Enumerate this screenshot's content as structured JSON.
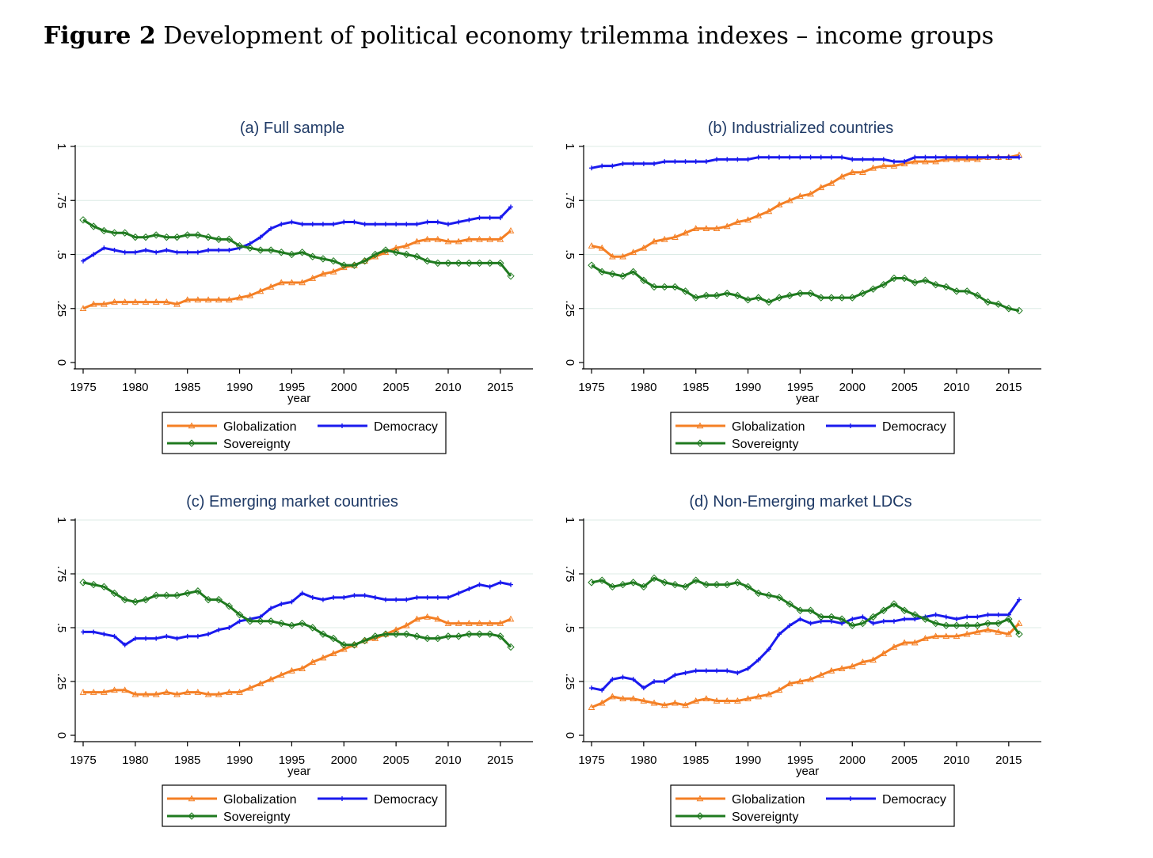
{
  "figure": {
    "label": "Figure 2",
    "caption": "Development of political economy trilemma indexes – income groups"
  },
  "colors": {
    "globalization": "#f47f24",
    "democracy": "#1a1aee",
    "sovereignty": "#1f7a1f",
    "gridline": "#dcebe6"
  },
  "chart_data": [
    {
      "type": "line",
      "title": "(a) Full sample",
      "xlabel": "year",
      "ylabel": "",
      "xlim": [
        1975,
        2016
      ],
      "ylim": [
        0,
        1
      ],
      "xticks": [
        "1975",
        "1980",
        "1985",
        "1990",
        "1995",
        "2000",
        "2005",
        "2010",
        "2015"
      ],
      "yticks": [
        "0",
        ".25",
        ".5",
        ".75",
        "1"
      ],
      "grid": true,
      "legend": "bottom",
      "x": [
        1975,
        1976,
        1977,
        1978,
        1979,
        1980,
        1981,
        1982,
        1983,
        1984,
        1985,
        1986,
        1987,
        1988,
        1989,
        1990,
        1991,
        1992,
        1993,
        1994,
        1995,
        1996,
        1997,
        1998,
        1999,
        2000,
        2001,
        2002,
        2003,
        2004,
        2005,
        2006,
        2007,
        2008,
        2009,
        2010,
        2011,
        2012,
        2013,
        2014,
        2015,
        2016
      ],
      "series": [
        {
          "name": "Globalization",
          "marker": "triangle",
          "values": [
            0.25,
            0.27,
            0.27,
            0.28,
            0.28,
            0.28,
            0.28,
            0.28,
            0.28,
            0.27,
            0.29,
            0.29,
            0.29,
            0.29,
            0.29,
            0.3,
            0.31,
            0.33,
            0.35,
            0.37,
            0.37,
            0.37,
            0.39,
            0.41,
            0.42,
            0.44,
            0.45,
            0.47,
            0.49,
            0.51,
            0.53,
            0.54,
            0.56,
            0.57,
            0.57,
            0.56,
            0.56,
            0.57,
            0.57,
            0.57,
            0.57,
            0.61
          ]
        },
        {
          "name": "Democracy",
          "marker": "plus",
          "values": [
            0.47,
            0.5,
            0.53,
            0.52,
            0.51,
            0.51,
            0.52,
            0.51,
            0.52,
            0.51,
            0.51,
            0.51,
            0.52,
            0.52,
            0.52,
            0.53,
            0.55,
            0.58,
            0.62,
            0.64,
            0.65,
            0.64,
            0.64,
            0.64,
            0.64,
            0.65,
            0.65,
            0.64,
            0.64,
            0.64,
            0.64,
            0.64,
            0.64,
            0.65,
            0.65,
            0.64,
            0.65,
            0.66,
            0.67,
            0.67,
            0.67,
            0.72
          ]
        },
        {
          "name": "Sovereignty",
          "marker": "diamond",
          "values": [
            0.66,
            0.63,
            0.61,
            0.6,
            0.6,
            0.58,
            0.58,
            0.59,
            0.58,
            0.58,
            0.59,
            0.59,
            0.58,
            0.57,
            0.57,
            0.54,
            0.53,
            0.52,
            0.52,
            0.51,
            0.5,
            0.51,
            0.49,
            0.48,
            0.47,
            0.45,
            0.45,
            0.47,
            0.5,
            0.52,
            0.51,
            0.5,
            0.49,
            0.47,
            0.46,
            0.46,
            0.46,
            0.46,
            0.46,
            0.46,
            0.46,
            0.4
          ]
        }
      ]
    },
    {
      "type": "line",
      "title": "(b) Industrialized countries",
      "xlabel": "year",
      "ylabel": "",
      "xlim": [
        1975,
        2016
      ],
      "ylim": [
        0,
        1
      ],
      "xticks": [
        "1975",
        "1980",
        "1985",
        "1990",
        "1995",
        "2000",
        "2005",
        "2010",
        "2015"
      ],
      "yticks": [
        "0",
        ".25",
        ".5",
        ".75",
        "1"
      ],
      "grid": true,
      "legend": "bottom",
      "x": [
        1975,
        1976,
        1977,
        1978,
        1979,
        1980,
        1981,
        1982,
        1983,
        1984,
        1985,
        1986,
        1987,
        1988,
        1989,
        1990,
        1991,
        1992,
        1993,
        1994,
        1995,
        1996,
        1997,
        1998,
        1999,
        2000,
        2001,
        2002,
        2003,
        2004,
        2005,
        2006,
        2007,
        2008,
        2009,
        2010,
        2011,
        2012,
        2013,
        2014,
        2015,
        2016
      ],
      "series": [
        {
          "name": "Globalization",
          "marker": "triangle",
          "values": [
            0.54,
            0.53,
            0.49,
            0.49,
            0.51,
            0.53,
            0.56,
            0.57,
            0.58,
            0.6,
            0.62,
            0.62,
            0.62,
            0.63,
            0.65,
            0.66,
            0.68,
            0.7,
            0.73,
            0.75,
            0.77,
            0.78,
            0.81,
            0.83,
            0.86,
            0.88,
            0.88,
            0.9,
            0.91,
            0.91,
            0.92,
            0.93,
            0.93,
            0.93,
            0.94,
            0.94,
            0.94,
            0.94,
            0.95,
            0.95,
            0.95,
            0.96
          ]
        },
        {
          "name": "Democracy",
          "marker": "plus",
          "values": [
            0.9,
            0.91,
            0.91,
            0.92,
            0.92,
            0.92,
            0.92,
            0.93,
            0.93,
            0.93,
            0.93,
            0.93,
            0.94,
            0.94,
            0.94,
            0.94,
            0.95,
            0.95,
            0.95,
            0.95,
            0.95,
            0.95,
            0.95,
            0.95,
            0.95,
            0.94,
            0.94,
            0.94,
            0.94,
            0.93,
            0.93,
            0.95,
            0.95,
            0.95,
            0.95,
            0.95,
            0.95,
            0.95,
            0.95,
            0.95,
            0.95,
            0.95
          ]
        },
        {
          "name": "Sovereignty",
          "marker": "diamond",
          "values": [
            0.45,
            0.42,
            0.41,
            0.4,
            0.42,
            0.38,
            0.35,
            0.35,
            0.35,
            0.33,
            0.3,
            0.31,
            0.31,
            0.32,
            0.31,
            0.29,
            0.3,
            0.28,
            0.3,
            0.31,
            0.32,
            0.32,
            0.3,
            0.3,
            0.3,
            0.3,
            0.32,
            0.34,
            0.36,
            0.39,
            0.39,
            0.37,
            0.38,
            0.36,
            0.35,
            0.33,
            0.33,
            0.31,
            0.28,
            0.27,
            0.25,
            0.24
          ]
        }
      ]
    },
    {
      "type": "line",
      "title": "(c) Emerging market countries",
      "xlabel": "year",
      "ylabel": "",
      "xlim": [
        1975,
        2016
      ],
      "ylim": [
        0,
        1
      ],
      "xticks": [
        "1975",
        "1980",
        "1985",
        "1990",
        "1995",
        "2000",
        "2005",
        "2010",
        "2015"
      ],
      "yticks": [
        "0",
        ".25",
        ".5",
        ".75",
        "1"
      ],
      "grid": true,
      "legend": "bottom",
      "x": [
        1975,
        1976,
        1977,
        1978,
        1979,
        1980,
        1981,
        1982,
        1983,
        1984,
        1985,
        1986,
        1987,
        1988,
        1989,
        1990,
        1991,
        1992,
        1993,
        1994,
        1995,
        1996,
        1997,
        1998,
        1999,
        2000,
        2001,
        2002,
        2003,
        2004,
        2005,
        2006,
        2007,
        2008,
        2009,
        2010,
        2011,
        2012,
        2013,
        2014,
        2015,
        2016
      ],
      "series": [
        {
          "name": "Globalization",
          "marker": "triangle",
          "values": [
            0.2,
            0.2,
            0.2,
            0.21,
            0.21,
            0.19,
            0.19,
            0.19,
            0.2,
            0.19,
            0.2,
            0.2,
            0.19,
            0.19,
            0.2,
            0.2,
            0.22,
            0.24,
            0.26,
            0.28,
            0.3,
            0.31,
            0.34,
            0.36,
            0.38,
            0.4,
            0.42,
            0.44,
            0.45,
            0.47,
            0.49,
            0.51,
            0.54,
            0.55,
            0.54,
            0.52,
            0.52,
            0.52,
            0.52,
            0.52,
            0.52,
            0.54
          ]
        },
        {
          "name": "Democracy",
          "marker": "plus",
          "values": [
            0.48,
            0.48,
            0.47,
            0.46,
            0.42,
            0.45,
            0.45,
            0.45,
            0.46,
            0.45,
            0.46,
            0.46,
            0.47,
            0.49,
            0.5,
            0.53,
            0.54,
            0.55,
            0.59,
            0.61,
            0.62,
            0.66,
            0.64,
            0.63,
            0.64,
            0.64,
            0.65,
            0.65,
            0.64,
            0.63,
            0.63,
            0.63,
            0.64,
            0.64,
            0.64,
            0.64,
            0.66,
            0.68,
            0.7,
            0.69,
            0.71,
            0.7
          ]
        },
        {
          "name": "Sovereignty",
          "marker": "diamond",
          "values": [
            0.71,
            0.7,
            0.69,
            0.66,
            0.63,
            0.62,
            0.63,
            0.65,
            0.65,
            0.65,
            0.66,
            0.67,
            0.63,
            0.63,
            0.6,
            0.56,
            0.53,
            0.53,
            0.53,
            0.52,
            0.51,
            0.52,
            0.5,
            0.47,
            0.45,
            0.42,
            0.42,
            0.44,
            0.46,
            0.47,
            0.47,
            0.47,
            0.46,
            0.45,
            0.45,
            0.46,
            0.46,
            0.47,
            0.47,
            0.47,
            0.46,
            0.41
          ]
        }
      ]
    },
    {
      "type": "line",
      "title": "(d) Non-Emerging market LDCs",
      "xlabel": "year",
      "ylabel": "",
      "xlim": [
        1975,
        2016
      ],
      "ylim": [
        0,
        1
      ],
      "xticks": [
        "1975",
        "1980",
        "1985",
        "1990",
        "1995",
        "2000",
        "2005",
        "2010",
        "2015"
      ],
      "yticks": [
        "0",
        ".25",
        ".5",
        ".75",
        "1"
      ],
      "grid": true,
      "legend": "bottom",
      "x": [
        1975,
        1976,
        1977,
        1978,
        1979,
        1980,
        1981,
        1982,
        1983,
        1984,
        1985,
        1986,
        1987,
        1988,
        1989,
        1990,
        1991,
        1992,
        1993,
        1994,
        1995,
        1996,
        1997,
        1998,
        1999,
        2000,
        2001,
        2002,
        2003,
        2004,
        2005,
        2006,
        2007,
        2008,
        2009,
        2010,
        2011,
        2012,
        2013,
        2014,
        2015,
        2016
      ],
      "series": [
        {
          "name": "Globalization",
          "marker": "triangle",
          "values": [
            0.13,
            0.15,
            0.18,
            0.17,
            0.17,
            0.16,
            0.15,
            0.14,
            0.15,
            0.14,
            0.16,
            0.17,
            0.16,
            0.16,
            0.16,
            0.17,
            0.18,
            0.19,
            0.21,
            0.24,
            0.25,
            0.26,
            0.28,
            0.3,
            0.31,
            0.32,
            0.34,
            0.35,
            0.38,
            0.41,
            0.43,
            0.43,
            0.45,
            0.46,
            0.46,
            0.46,
            0.47,
            0.48,
            0.49,
            0.48,
            0.47,
            0.52
          ]
        },
        {
          "name": "Democracy",
          "marker": "plus",
          "values": [
            0.22,
            0.21,
            0.26,
            0.27,
            0.26,
            0.22,
            0.25,
            0.25,
            0.28,
            0.29,
            0.3,
            0.3,
            0.3,
            0.3,
            0.29,
            0.31,
            0.35,
            0.4,
            0.47,
            0.51,
            0.54,
            0.52,
            0.53,
            0.53,
            0.52,
            0.54,
            0.55,
            0.52,
            0.53,
            0.53,
            0.54,
            0.54,
            0.55,
            0.56,
            0.55,
            0.54,
            0.55,
            0.55,
            0.56,
            0.56,
            0.56,
            0.63
          ]
        },
        {
          "name": "Sovereignty",
          "marker": "diamond",
          "values": [
            0.71,
            0.72,
            0.69,
            0.7,
            0.71,
            0.69,
            0.73,
            0.71,
            0.7,
            0.69,
            0.72,
            0.7,
            0.7,
            0.7,
            0.71,
            0.69,
            0.66,
            0.65,
            0.64,
            0.61,
            0.58,
            0.58,
            0.55,
            0.55,
            0.54,
            0.51,
            0.52,
            0.55,
            0.58,
            0.61,
            0.58,
            0.56,
            0.54,
            0.52,
            0.51,
            0.51,
            0.51,
            0.51,
            0.52,
            0.52,
            0.54,
            0.47
          ]
        }
      ]
    }
  ]
}
